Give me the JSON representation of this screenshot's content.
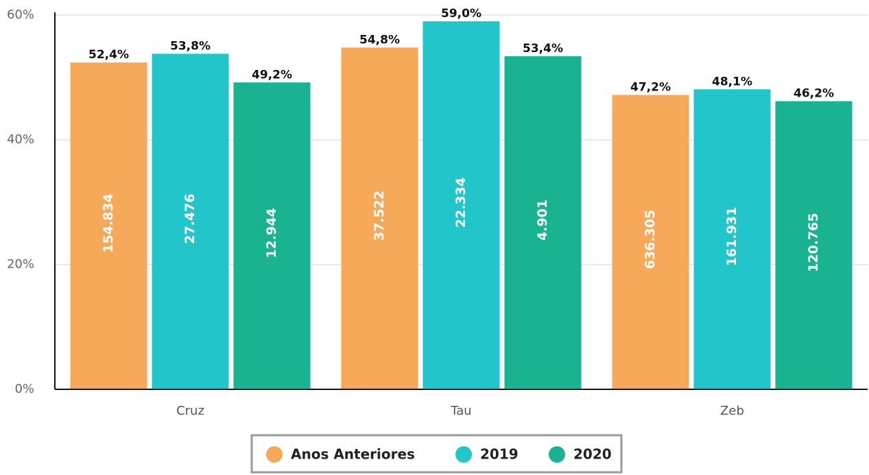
{
  "chart_data": {
    "type": "bar",
    "categories": [
      "Cruz",
      "Tau",
      "Zeb"
    ],
    "series": [
      {
        "name": "Anos Anteriores",
        "color": "#f7a95a",
        "values": [
          52.4,
          54.8,
          47.2
        ],
        "value_labels": [
          "52,4%",
          "54,8%",
          "47,2%"
        ],
        "count_labels": [
          "154.834",
          "37.522",
          "636.305"
        ]
      },
      {
        "name": "2019",
        "color": "#22c5c9",
        "values": [
          53.8,
          59.0,
          48.1
        ],
        "value_labels": [
          "53,8%",
          "59,0%",
          "48,1%"
        ],
        "count_labels": [
          "27.476",
          "22.334",
          "161.931"
        ]
      },
      {
        "name": "2020",
        "color": "#1ab392",
        "values": [
          49.2,
          53.4,
          46.2
        ],
        "value_labels": [
          "49,2%",
          "53,4%",
          "46,2%"
        ],
        "count_labels": [
          "12.944",
          "4.901",
          "120.765"
        ]
      }
    ],
    "ylim": [
      0,
      60
    ],
    "yticks": [
      {
        "value": 0,
        "label": "0%"
      },
      {
        "value": 20,
        "label": "20%"
      },
      {
        "value": 40,
        "label": "40%"
      },
      {
        "value": 60,
        "label": "60%"
      }
    ],
    "grid": true,
    "legend": "bottom"
  }
}
